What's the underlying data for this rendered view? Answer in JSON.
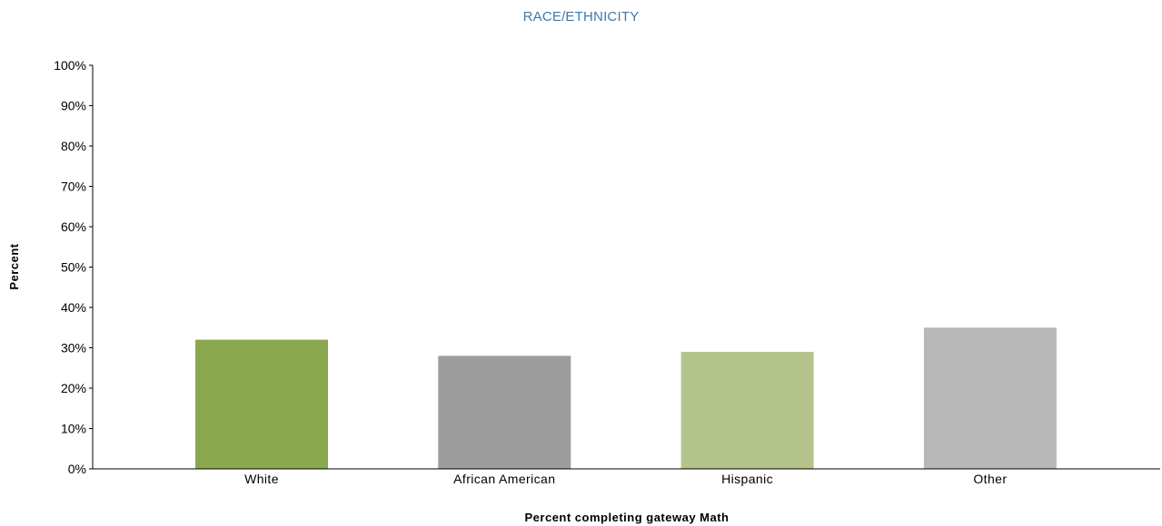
{
  "chart_data": {
    "type": "bar",
    "title": "RACE/ETHNICITY",
    "xlabel": "Percent completing gateway Math",
    "ylabel": "Percent",
    "categories": [
      "White",
      "African American",
      "Hispanic",
      "Other"
    ],
    "values": [
      32,
      28,
      29,
      35
    ],
    "colors": [
      "#8aa84d",
      "#9d9d9d",
      "#b5c48a",
      "#b8b8b8"
    ],
    "ylim": [
      0,
      100
    ],
    "yticks": [
      0,
      10,
      20,
      30,
      40,
      50,
      60,
      70,
      80,
      90,
      100
    ],
    "ytick_labels": [
      "0%",
      "10%",
      "20%",
      "30%",
      "40%",
      "50%",
      "60%",
      "70%",
      "80%",
      "90%",
      "100%"
    ],
    "grid": false,
    "legend": "none"
  }
}
